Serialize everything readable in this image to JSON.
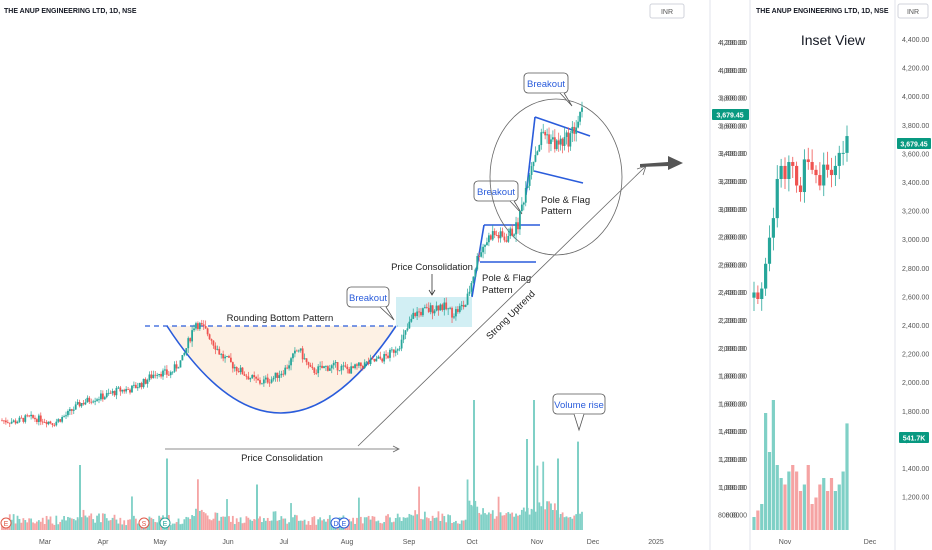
{
  "main": {
    "title": "THE ANUP ENGINEERING LTD, 1D, NSE",
    "currency": "INR",
    "price_badge": "3,679.45",
    "y_ticks": [
      "4,200.00",
      "4,000.00",
      "3,800.00",
      "3,600.00",
      "3,400.00",
      "3,200.00",
      "3,000.00",
      "2,800.00",
      "2,600.00",
      "2,400.00",
      "2,200.00",
      "2,000.00",
      "1,800.00",
      "1,600.00",
      "1,400.00",
      "1,200.00",
      "1,000.00",
      "800.00"
    ],
    "x_ticks": [
      "Mar",
      "Apr",
      "May",
      "Jun",
      "Jul",
      "Aug",
      "Sep",
      "Oct",
      "Nov",
      "Dec",
      "2025"
    ],
    "annotations": {
      "rounding_bottom": "Rounding Bottom Pattern",
      "breakout_1": "Breakout",
      "price_consolidation_top": "Price Consolidation",
      "pole_flag_1a": "Pole & Flag",
      "pole_flag_1b": "Pattern",
      "breakout_2": "Breakout",
      "pole_flag_2a": "Pole & Flag",
      "pole_flag_2b": "Pattern",
      "breakout_3": "Breakout",
      "strong_uptrend": "Strong Uptrend",
      "price_consolidation_bottom": "Price Consolidation",
      "volume_rise": "Volume rise"
    },
    "event_markers": [
      "E",
      "S",
      "E",
      "D",
      "E"
    ]
  },
  "inset": {
    "title": "THE ANUP ENGINEERING LTD, 1D, NSE",
    "currency": "INR",
    "label": "Inset View",
    "price_badge": "3,679.45",
    "volume_badge": "541.7K",
    "y_ticks_left": [
      "4,200.00",
      "4,000.00",
      "3,800.00",
      "3,600.00",
      "3,400.00",
      "3,200.00",
      "3,000.00",
      "2,800.00",
      "2,600.00",
      "2,400.00",
      "2,200.00",
      "2,000.00",
      "1,800.00",
      "1,600.00",
      "1,400.00",
      "1,200.00",
      "1,000.00",
      "800.00"
    ],
    "y_ticks_right": [
      "4,400.00",
      "4,200.00",
      "4,000.00",
      "3,800.00",
      "3,600.00",
      "3,400.00",
      "3,200.00",
      "3,000.00",
      "2,800.00",
      "2,600.00",
      "2,400.00",
      "2,200.00",
      "2,000.00",
      "1,800.00",
      "1,600.00",
      "1,400.00",
      "1,200.00"
    ],
    "x_ticks": [
      "Nov",
      "Dec"
    ]
  },
  "chart_data": [
    {
      "type": "candlestick",
      "title": "THE ANUP ENGINEERING LTD, 1D, NSE",
      "ylim": [
        700,
        4300
      ],
      "x": [
        "Feb",
        "Feb",
        "Feb",
        "Feb",
        "Feb",
        "Mar",
        "Mar",
        "Mar",
        "Mar",
        "Mar",
        "Apr",
        "Apr",
        "Apr",
        "Apr",
        "May",
        "May",
        "May",
        "May",
        "May",
        "Jun",
        "Jun",
        "Jun",
        "Jun",
        "Jul",
        "Jul",
        "Jul",
        "Jul",
        "Jul",
        "Aug",
        "Aug",
        "Aug",
        "Aug",
        "Sep",
        "Sep",
        "Sep",
        "Sep",
        "Oct",
        "Oct",
        "Oct",
        "Oct",
        "Oct",
        "Nov",
        "Nov",
        "Nov",
        "Nov",
        "Nov"
      ],
      "close": [
        1420,
        1410,
        1440,
        1430,
        1400,
        1460,
        1540,
        1580,
        1600,
        1640,
        1650,
        1700,
        1780,
        1760,
        1870,
        2150,
        2060,
        1900,
        1820,
        1750,
        1700,
        1730,
        1800,
        1950,
        1780,
        1810,
        1820,
        1790,
        1830,
        1860,
        1900,
        2000,
        2210,
        2230,
        2270,
        2210,
        2280,
        2660,
        2800,
        2760,
        2850,
        3300,
        3550,
        3450,
        3500,
        3680
      ],
      "volume_relative": [
        0.3,
        0.25,
        0.2,
        0.28,
        0.25,
        0.3,
        0.55,
        0.35,
        0.3,
        0.2,
        0.25,
        0.3,
        0.35,
        0.2,
        0.3,
        0.6,
        0.4,
        0.3,
        0.25,
        0.2,
        0.25,
        0.45,
        0.3,
        0.2,
        0.25,
        0.3,
        0.25,
        0.2,
        0.25,
        0.3,
        0.35,
        0.4,
        0.5,
        0.45,
        0.35,
        0.3,
        1.0,
        0.6,
        0.5,
        0.55,
        0.7,
        0.9,
        1.0,
        0.6,
        0.55,
        0.9
      ]
    },
    {
      "type": "candlestick",
      "title": "Inset View",
      "x": [
        "Oct",
        "Oct",
        "Oct",
        "Oct",
        "Oct",
        "Oct",
        "Nov",
        "Nov",
        "Nov",
        "Nov",
        "Nov",
        "Nov",
        "Nov",
        "Nov",
        "Nov",
        "Nov",
        "Nov",
        "Nov",
        "Nov",
        "Nov",
        "Nov",
        "Nov",
        "Nov",
        "Nov",
        "Nov"
      ],
      "close": [
        2480,
        2430,
        2510,
        2700,
        2900,
        3050,
        3350,
        3450,
        3350,
        3480,
        3450,
        3300,
        3250,
        3500,
        3480,
        3420,
        3380,
        3300,
        3460,
        3420,
        3380,
        3450,
        3550,
        3550,
        3679
      ],
      "volume_relative": [
        0.1,
        0.15,
        0.2,
        0.9,
        0.6,
        1.0,
        0.5,
        0.4,
        0.35,
        0.45,
        0.5,
        0.45,
        0.3,
        0.35,
        0.5,
        0.2,
        0.25,
        0.35,
        0.4,
        0.3,
        0.4,
        0.3,
        0.35,
        0.45,
        0.82
      ]
    }
  ]
}
